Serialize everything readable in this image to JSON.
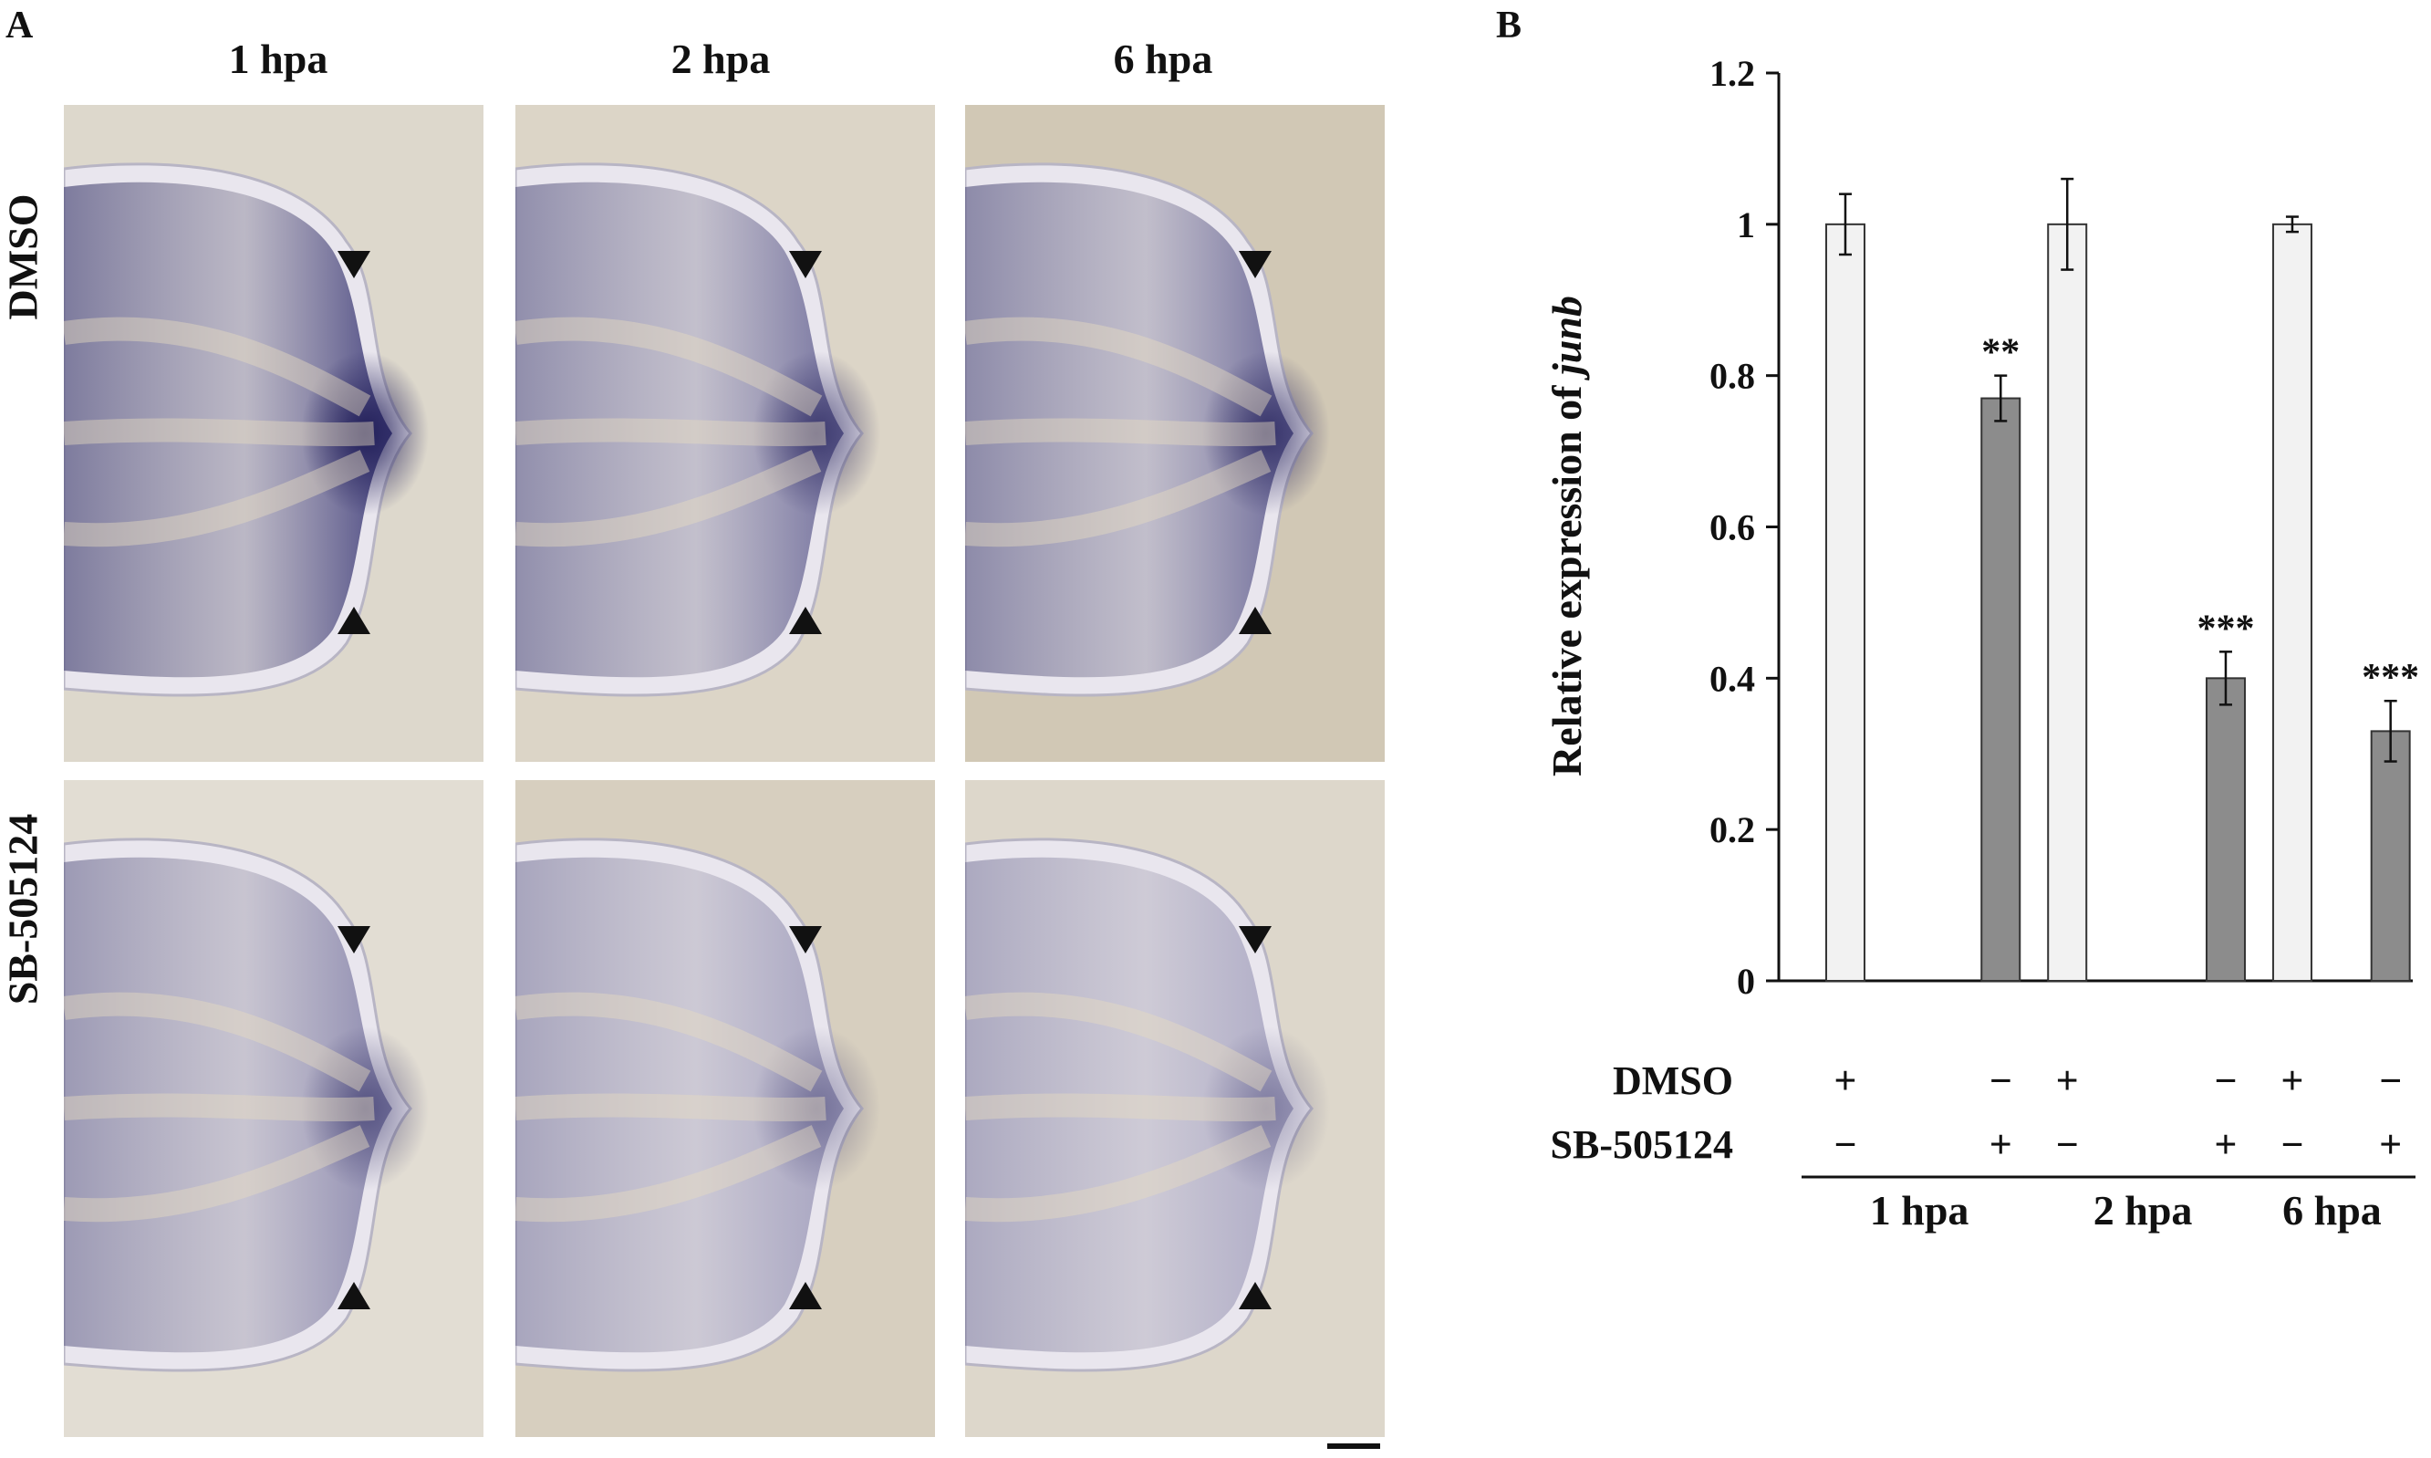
{
  "panel_a": {
    "letter": "A",
    "columns": [
      "1 hpa",
      "2 hpa",
      "6 hpa"
    ],
    "rows": [
      "DMSO",
      "SB-505124"
    ],
    "image_description": "in situ hybridization of regenerating fin tips, blue staining, arrowheads mark amputation plane"
  },
  "panel_b": {
    "letter": "B"
  },
  "chart_data": {
    "type": "bar",
    "ylabel_prefix": "Relative expression of ",
    "ylabel_gene": "junb",
    "ylim": [
      0,
      1.2
    ],
    "yticks": [
      0,
      0.2,
      0.4,
      0.6,
      0.8,
      1,
      1.2
    ],
    "ytick_labels": [
      "0",
      "0.2",
      "0.4",
      "0.6",
      "0.8",
      "1",
      "1.2"
    ],
    "groups": [
      "1 hpa",
      "2 hpa",
      "6 hpa"
    ],
    "bars": [
      {
        "group": "1 hpa",
        "treatment": "DMSO",
        "value": 1.0,
        "error": 0.04,
        "sig": "",
        "color": "#f2f2f2"
      },
      {
        "group": "1 hpa",
        "treatment": "SB-505124",
        "value": 0.77,
        "error": 0.03,
        "sig": "**",
        "color": "#8c8c8c"
      },
      {
        "group": "2 hpa",
        "treatment": "DMSO",
        "value": 1.0,
        "error": 0.06,
        "sig": "",
        "color": "#f2f2f2"
      },
      {
        "group": "2 hpa",
        "treatment": "SB-505124",
        "value": 0.4,
        "error": 0.035,
        "sig": "***",
        "color": "#8c8c8c"
      },
      {
        "group": "6 hpa",
        "treatment": "DMSO",
        "value": 1.0,
        "error": 0.01,
        "sig": "",
        "color": "#f2f2f2"
      },
      {
        "group": "6 hpa",
        "treatment": "SB-505124",
        "value": 0.33,
        "error": 0.04,
        "sig": "***",
        "color": "#8c8c8c"
      }
    ],
    "condition_rows": [
      {
        "label": "DMSO",
        "marks": [
          "+",
          "−",
          "+",
          "−",
          "+",
          "−"
        ]
      },
      {
        "label": "SB-505124",
        "marks": [
          "−",
          "+",
          "−",
          "+",
          "−",
          "+"
        ]
      }
    ],
    "grid": false,
    "legend": "none"
  }
}
